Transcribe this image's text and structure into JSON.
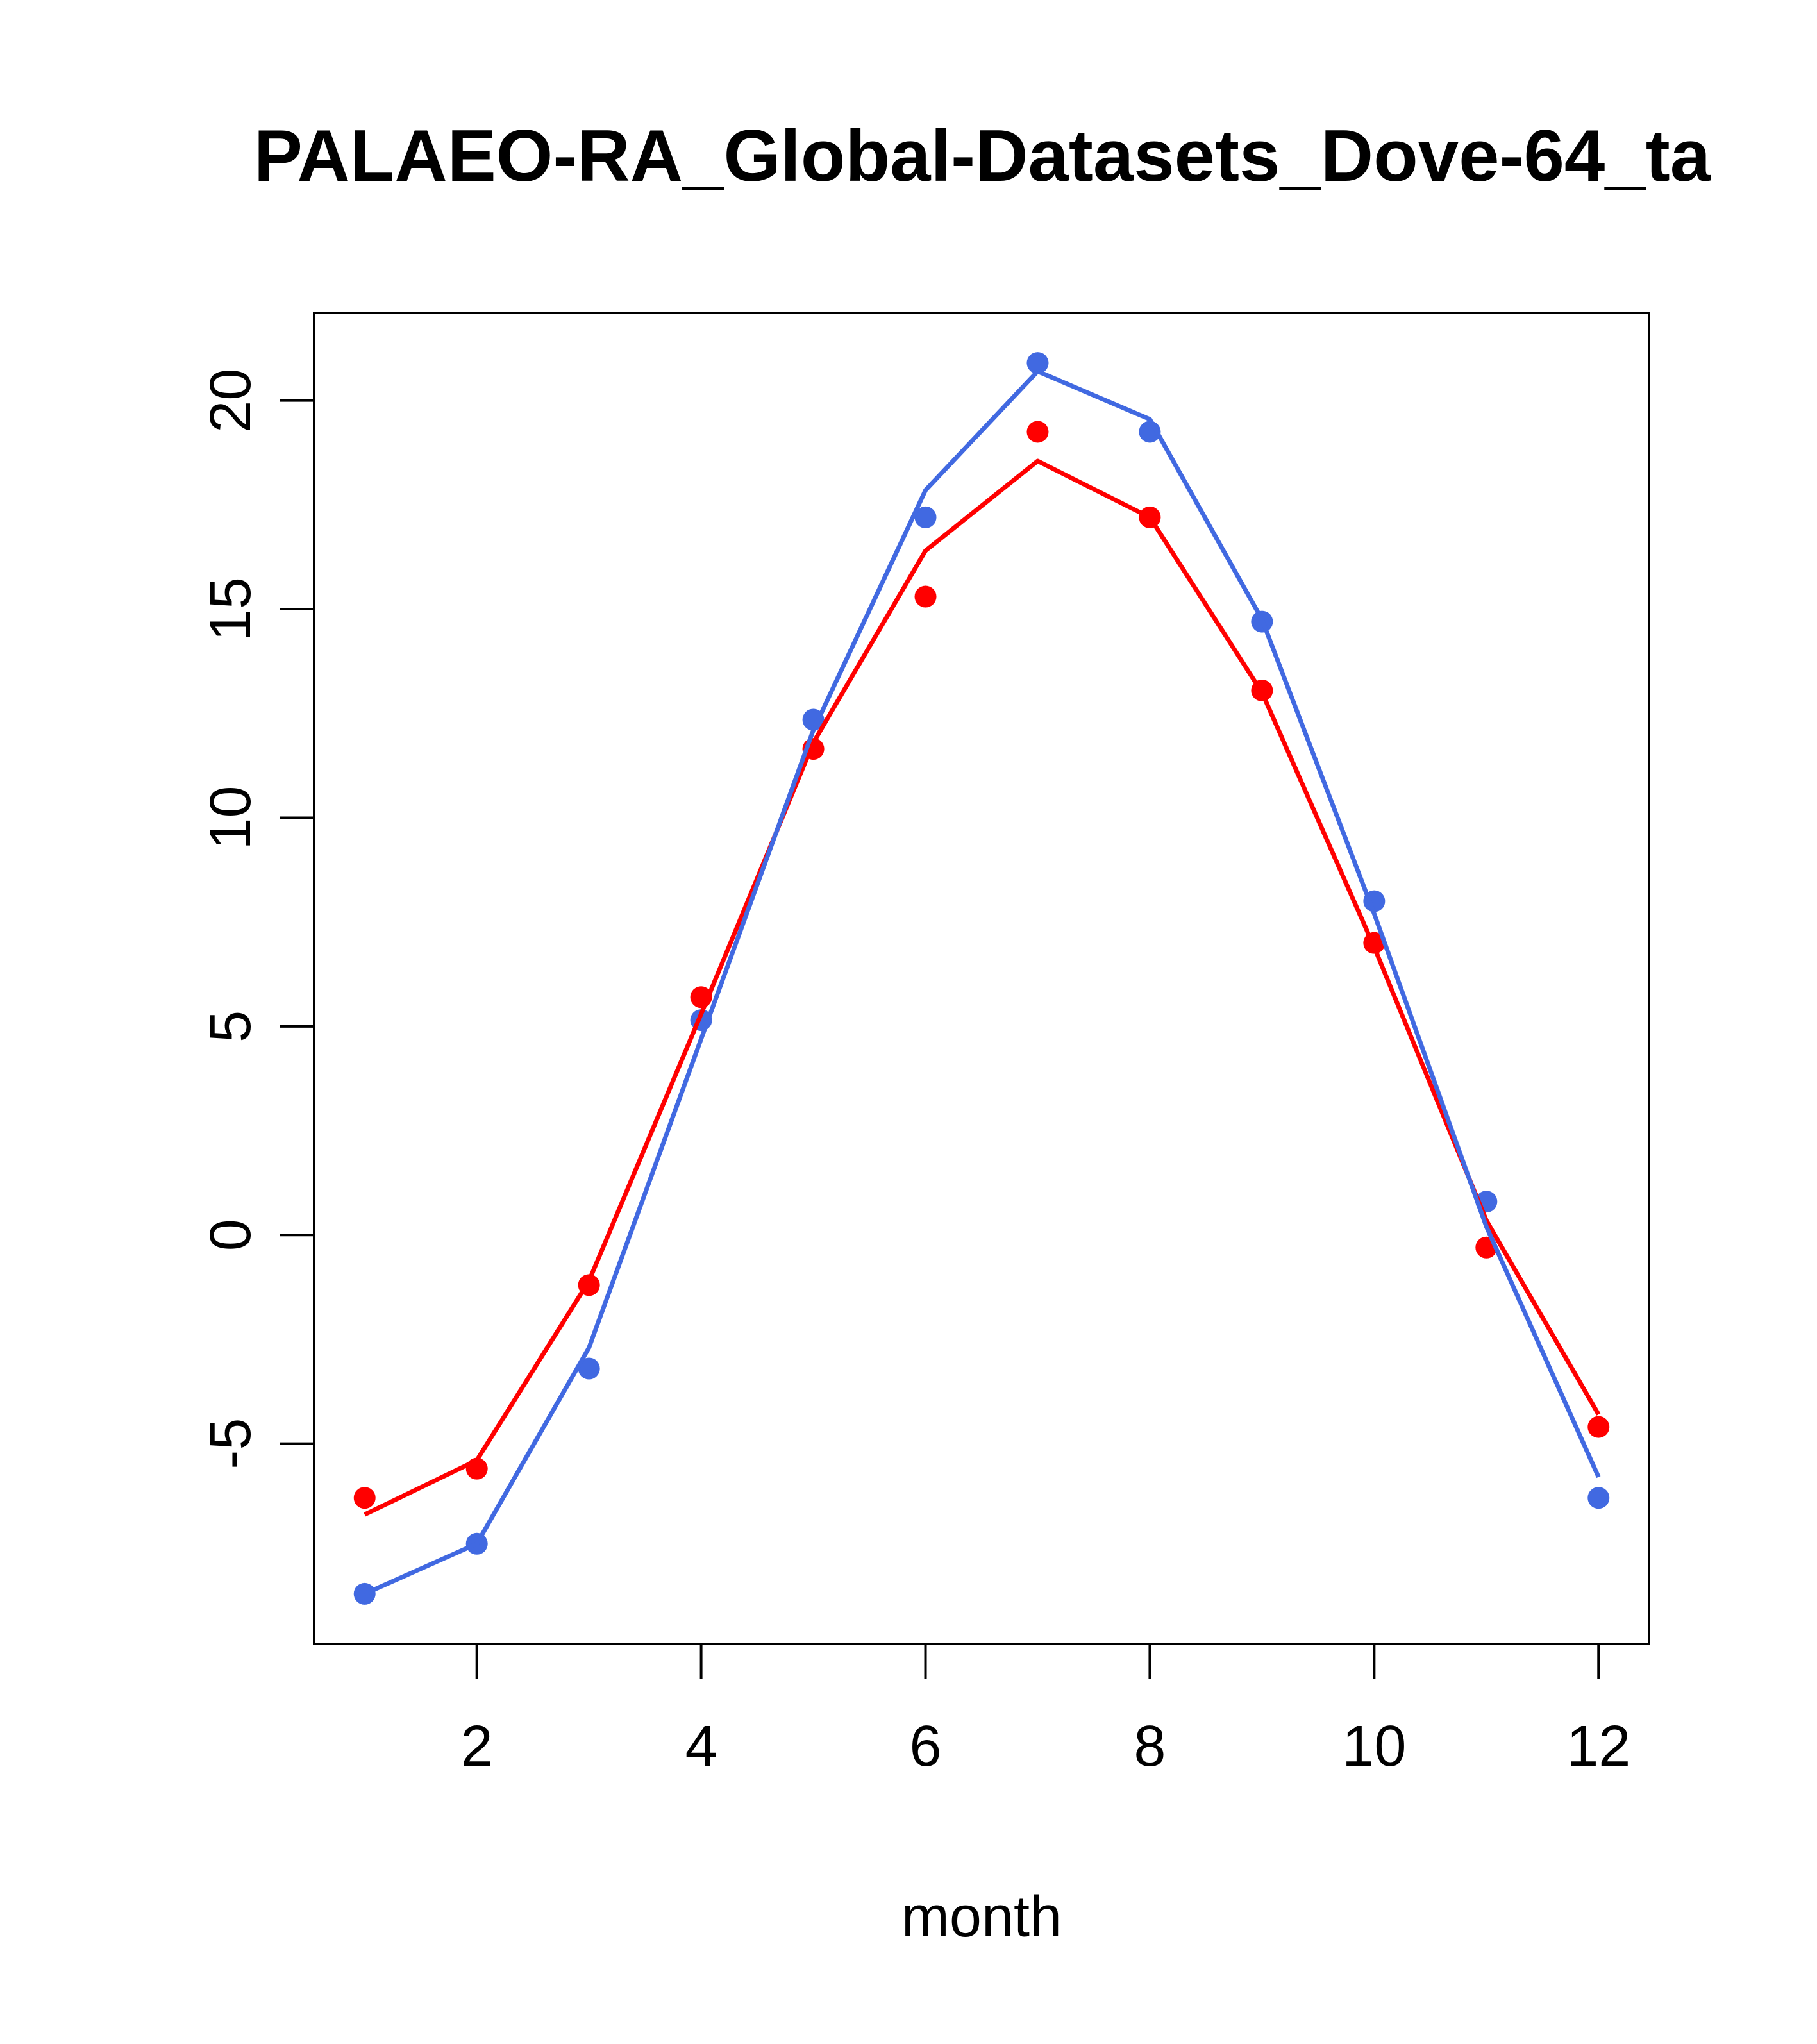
{
  "chart_data": {
    "type": "line",
    "title": "PALAEO-RA_Global-Datasets_Dove-64_ta",
    "xlabel": "month",
    "ylabel": "",
    "x": [
      1,
      2,
      3,
      4,
      5,
      6,
      7,
      8,
      9,
      10,
      11,
      12
    ],
    "xlim": [
      0.55,
      12.45
    ],
    "ylim": [
      -9.8,
      22.1
    ],
    "xticks": [
      2,
      4,
      6,
      8,
      10,
      12
    ],
    "yticks": [
      -5,
      0,
      5,
      10,
      15,
      20
    ],
    "grid": false,
    "legend": "none",
    "series": [
      {
        "color": "#ff0000",
        "points": [
          -6.3,
          -5.6,
          -1.2,
          5.7,
          11.65,
          15.3,
          19.25,
          17.2,
          13.05,
          7.0,
          -0.3,
          -4.6
        ],
        "line": [
          -6.7,
          -5.4,
          -1.1,
          5.3,
          11.8,
          16.4,
          18.55,
          17.2,
          13.0,
          6.9,
          0.35,
          -4.3
        ]
      },
      {
        "color": "#4169e1",
        "points": [
          -8.6,
          -7.4,
          -3.2,
          5.15,
          12.35,
          17.2,
          20.9,
          19.25,
          14.7,
          8.0,
          0.8,
          -6.3
        ],
        "line": [
          -8.6,
          -7.4,
          -2.7,
          4.7,
          12.1,
          17.85,
          20.7,
          19.55,
          14.75,
          7.7,
          0.2,
          -5.8
        ]
      }
    ]
  }
}
